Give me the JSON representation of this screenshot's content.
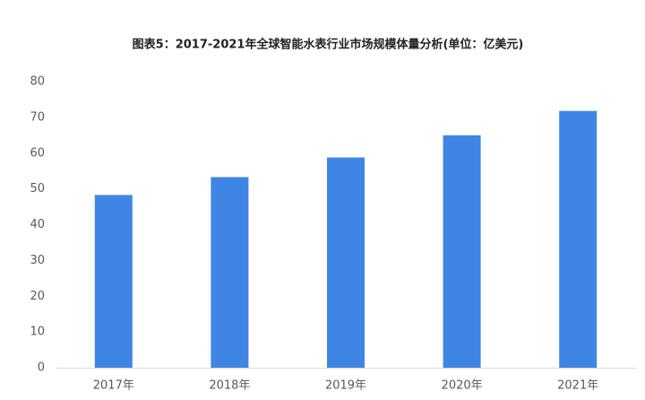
{
  "chart_data": {
    "type": "bar",
    "title": "图表5：2017-2021年全球智能水表行业市场规模体量分析(单位：亿美元)",
    "categories": [
      "2017年",
      "2018年",
      "2019年",
      "2020年",
      "2021年"
    ],
    "values": [
      48.3,
      53.3,
      58.8,
      65,
      71.8
    ],
    "color": "#3f86e4",
    "ylim": [
      0,
      80
    ],
    "yticks": [
      0,
      10,
      20,
      30,
      40,
      50,
      60,
      70,
      80
    ],
    "grid": false
  }
}
